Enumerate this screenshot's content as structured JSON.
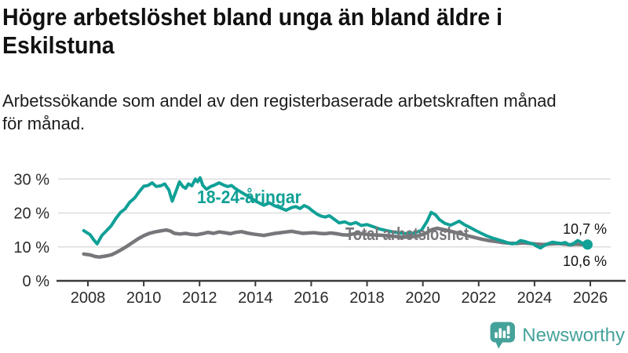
{
  "chart_data": {
    "type": "line",
    "title_lines": [
      "Högre arbetslöshet bland unga än bland äldre i",
      "Eskilstuna"
    ],
    "subtitle_lines": [
      "Arbetssökande som andel av den registerbaserade arbetskraften månad",
      "för månad."
    ],
    "unit": "%",
    "grid": "horizontal",
    "legend_position": "inline-labels",
    "colors": {
      "youth": "#10A096",
      "total": "#77777B",
      "grid": "#DCDCDC",
      "axis": "#3A3A3A",
      "tick_text": "#2b2b2b"
    },
    "x_axis": {
      "range": [
        2007.85,
        2026.3
      ],
      "ticks": [
        {
          "x": 2008,
          "label": "2008"
        },
        {
          "x": 2010,
          "label": "2010"
        },
        {
          "x": 2012,
          "label": "2012"
        },
        {
          "x": 2014,
          "label": "2014"
        },
        {
          "x": 2016,
          "label": "2016"
        },
        {
          "x": 2018,
          "label": "2018"
        },
        {
          "x": 2020,
          "label": "2020"
        },
        {
          "x": 2022,
          "label": "2022"
        },
        {
          "x": 2024,
          "label": "2024"
        },
        {
          "x": 2026,
          "label": "2026"
        }
      ]
    },
    "y_axis": {
      "range": [
        0,
        31
      ],
      "ticks": [
        {
          "value": 0,
          "label": "0 %"
        },
        {
          "value": 10,
          "label": "10 %"
        },
        {
          "value": 20,
          "label": "20 %"
        },
        {
          "value": 30,
          "label": "30 %"
        }
      ]
    },
    "series": [
      {
        "name": "Total arbetslöshet",
        "color": "#77777B",
        "end_label": "10,6 %",
        "end_dot": false,
        "points": [
          [
            2007.85,
            7.9
          ],
          [
            2008.1,
            7.6
          ],
          [
            2008.25,
            7.2
          ],
          [
            2008.4,
            7.0
          ],
          [
            2008.55,
            7.2
          ],
          [
            2008.7,
            7.4
          ],
          [
            2008.85,
            7.7
          ],
          [
            2009.0,
            8.3
          ],
          [
            2009.2,
            9.2
          ],
          [
            2009.4,
            10.2
          ],
          [
            2009.6,
            11.3
          ],
          [
            2009.8,
            12.4
          ],
          [
            2010.0,
            13.3
          ],
          [
            2010.2,
            14.0
          ],
          [
            2010.4,
            14.4
          ],
          [
            2010.6,
            14.7
          ],
          [
            2010.8,
            15.0
          ],
          [
            2010.95,
            14.7
          ],
          [
            2011.1,
            14.0
          ],
          [
            2011.3,
            13.8
          ],
          [
            2011.5,
            14.0
          ],
          [
            2011.7,
            13.7
          ],
          [
            2011.9,
            13.6
          ],
          [
            2012.1,
            13.9
          ],
          [
            2012.3,
            14.3
          ],
          [
            2012.5,
            14.0
          ],
          [
            2012.7,
            14.4
          ],
          [
            2012.9,
            14.2
          ],
          [
            2013.1,
            13.9
          ],
          [
            2013.3,
            14.3
          ],
          [
            2013.5,
            14.5
          ],
          [
            2013.7,
            14.1
          ],
          [
            2013.9,
            13.8
          ],
          [
            2014.1,
            13.6
          ],
          [
            2014.3,
            13.4
          ],
          [
            2014.5,
            13.7
          ],
          [
            2014.7,
            14.0
          ],
          [
            2014.9,
            14.2
          ],
          [
            2015.1,
            14.4
          ],
          [
            2015.3,
            14.6
          ],
          [
            2015.5,
            14.3
          ],
          [
            2015.7,
            14.0
          ],
          [
            2015.9,
            14.1
          ],
          [
            2016.1,
            14.2
          ],
          [
            2016.3,
            14.0
          ],
          [
            2016.5,
            13.9
          ],
          [
            2016.7,
            14.1
          ],
          [
            2016.9,
            13.9
          ],
          [
            2017.1,
            13.6
          ],
          [
            2017.3,
            13.5
          ],
          [
            2017.5,
            13.8
          ],
          [
            2017.7,
            14.0
          ],
          [
            2017.9,
            13.8
          ],
          [
            2018.1,
            13.6
          ],
          [
            2018.35,
            13.5
          ],
          [
            2018.6,
            13.4
          ],
          [
            2018.85,
            13.2
          ],
          [
            2019.1,
            13.0
          ],
          [
            2019.35,
            12.9
          ],
          [
            2019.6,
            13.0
          ],
          [
            2019.85,
            13.3
          ],
          [
            2020.1,
            14.0
          ],
          [
            2020.3,
            15.0
          ],
          [
            2020.5,
            15.5
          ],
          [
            2020.7,
            15.2
          ],
          [
            2020.9,
            14.8
          ],
          [
            2021.1,
            14.4
          ],
          [
            2021.35,
            13.9
          ],
          [
            2021.6,
            13.3
          ],
          [
            2021.85,
            12.8
          ],
          [
            2022.1,
            12.3
          ],
          [
            2022.35,
            11.9
          ],
          [
            2022.6,
            11.6
          ],
          [
            2022.85,
            11.3
          ],
          [
            2023.1,
            11.1
          ],
          [
            2023.35,
            11.0
          ],
          [
            2023.6,
            11.2
          ],
          [
            2023.85,
            11.0
          ],
          [
            2024.1,
            10.8
          ],
          [
            2024.35,
            10.7
          ],
          [
            2024.6,
            10.9
          ],
          [
            2024.85,
            11.0
          ],
          [
            2025.1,
            10.8
          ],
          [
            2025.3,
            10.6
          ],
          [
            2025.5,
            10.8
          ],
          [
            2025.7,
            10.7
          ],
          [
            2025.9,
            10.6
          ]
        ]
      },
      {
        "name": "18-24-åringar",
        "color": "#10A096",
        "end_label": "10,7 %",
        "end_dot": true,
        "points": [
          [
            2007.85,
            14.8
          ],
          [
            2008.08,
            13.6
          ],
          [
            2008.2,
            12.2
          ],
          [
            2008.33,
            10.9
          ],
          [
            2008.5,
            13.4
          ],
          [
            2008.67,
            14.8
          ],
          [
            2008.83,
            16.2
          ],
          [
            2009.0,
            18.4
          ],
          [
            2009.17,
            20.2
          ],
          [
            2009.33,
            21.2
          ],
          [
            2009.5,
            23.2
          ],
          [
            2009.67,
            24.4
          ],
          [
            2009.83,
            26.2
          ],
          [
            2010.0,
            27.9
          ],
          [
            2010.15,
            28.1
          ],
          [
            2010.3,
            28.9
          ],
          [
            2010.45,
            27.8
          ],
          [
            2010.6,
            28.0
          ],
          [
            2010.75,
            28.6
          ],
          [
            2010.9,
            26.8
          ],
          [
            2011.02,
            23.5
          ],
          [
            2011.15,
            26.3
          ],
          [
            2011.28,
            29.2
          ],
          [
            2011.4,
            27.8
          ],
          [
            2011.5,
            27.3
          ],
          [
            2011.6,
            28.6
          ],
          [
            2011.72,
            28.0
          ],
          [
            2011.85,
            30.0
          ],
          [
            2011.93,
            29.2
          ],
          [
            2012.02,
            30.4
          ],
          [
            2012.12,
            28.1
          ],
          [
            2012.25,
            27.0
          ],
          [
            2012.4,
            27.8
          ],
          [
            2012.55,
            28.3
          ],
          [
            2012.7,
            28.9
          ],
          [
            2012.85,
            28.3
          ],
          [
            2013.0,
            27.8
          ],
          [
            2013.15,
            28.1
          ],
          [
            2013.3,
            27.1
          ],
          [
            2013.5,
            26.1
          ],
          [
            2013.7,
            25.1
          ],
          [
            2013.9,
            24.1
          ],
          [
            2014.1,
            23.1
          ],
          [
            2014.3,
            22.3
          ],
          [
            2014.5,
            23.0
          ],
          [
            2014.7,
            22.1
          ],
          [
            2014.9,
            21.5
          ],
          [
            2015.1,
            20.8
          ],
          [
            2015.3,
            21.6
          ],
          [
            2015.45,
            21.9
          ],
          [
            2015.6,
            21.3
          ],
          [
            2015.75,
            22.2
          ],
          [
            2015.9,
            21.6
          ],
          [
            2016.05,
            20.6
          ],
          [
            2016.2,
            19.7
          ],
          [
            2016.35,
            19.1
          ],
          [
            2016.5,
            18.8
          ],
          [
            2016.65,
            19.2
          ],
          [
            2016.8,
            18.3
          ],
          [
            2017.0,
            17.1
          ],
          [
            2017.2,
            17.4
          ],
          [
            2017.4,
            16.7
          ],
          [
            2017.6,
            17.2
          ],
          [
            2017.8,
            16.3
          ],
          [
            2018.0,
            16.6
          ],
          [
            2018.2,
            16.0
          ],
          [
            2018.45,
            15.3
          ],
          [
            2018.7,
            14.8
          ],
          [
            2018.95,
            14.4
          ],
          [
            2019.2,
            14.1
          ],
          [
            2019.45,
            13.9
          ],
          [
            2019.7,
            14.1
          ],
          [
            2019.95,
            14.9
          ],
          [
            2020.15,
            17.5
          ],
          [
            2020.3,
            20.2
          ],
          [
            2020.45,
            19.5
          ],
          [
            2020.6,
            18.0
          ],
          [
            2020.8,
            16.9
          ],
          [
            2021.0,
            16.4
          ],
          [
            2021.15,
            17.0
          ],
          [
            2021.3,
            17.6
          ],
          [
            2021.5,
            16.5
          ],
          [
            2021.7,
            15.7
          ],
          [
            2021.9,
            14.8
          ],
          [
            2022.1,
            14.0
          ],
          [
            2022.3,
            13.2
          ],
          [
            2022.5,
            12.6
          ],
          [
            2022.7,
            12.1
          ],
          [
            2022.9,
            11.6
          ],
          [
            2023.05,
            11.2
          ],
          [
            2023.2,
            10.9
          ],
          [
            2023.35,
            11.1
          ],
          [
            2023.5,
            11.9
          ],
          [
            2023.65,
            11.6
          ],
          [
            2023.8,
            11.2
          ],
          [
            2023.95,
            10.9
          ],
          [
            2024.1,
            10.1
          ],
          [
            2024.22,
            9.7
          ],
          [
            2024.35,
            10.4
          ],
          [
            2024.5,
            11.0
          ],
          [
            2024.65,
            11.4
          ],
          [
            2024.8,
            11.2
          ],
          [
            2024.95,
            11.0
          ],
          [
            2025.1,
            11.3
          ],
          [
            2025.25,
            10.6
          ],
          [
            2025.4,
            11.0
          ],
          [
            2025.55,
            11.9
          ],
          [
            2025.7,
            11.2
          ],
          [
            2025.8,
            10.5
          ],
          [
            2025.9,
            10.7
          ]
        ]
      }
    ]
  },
  "footer": {
    "brand": "Newsworthy",
    "brand_color": "#45A29B"
  }
}
